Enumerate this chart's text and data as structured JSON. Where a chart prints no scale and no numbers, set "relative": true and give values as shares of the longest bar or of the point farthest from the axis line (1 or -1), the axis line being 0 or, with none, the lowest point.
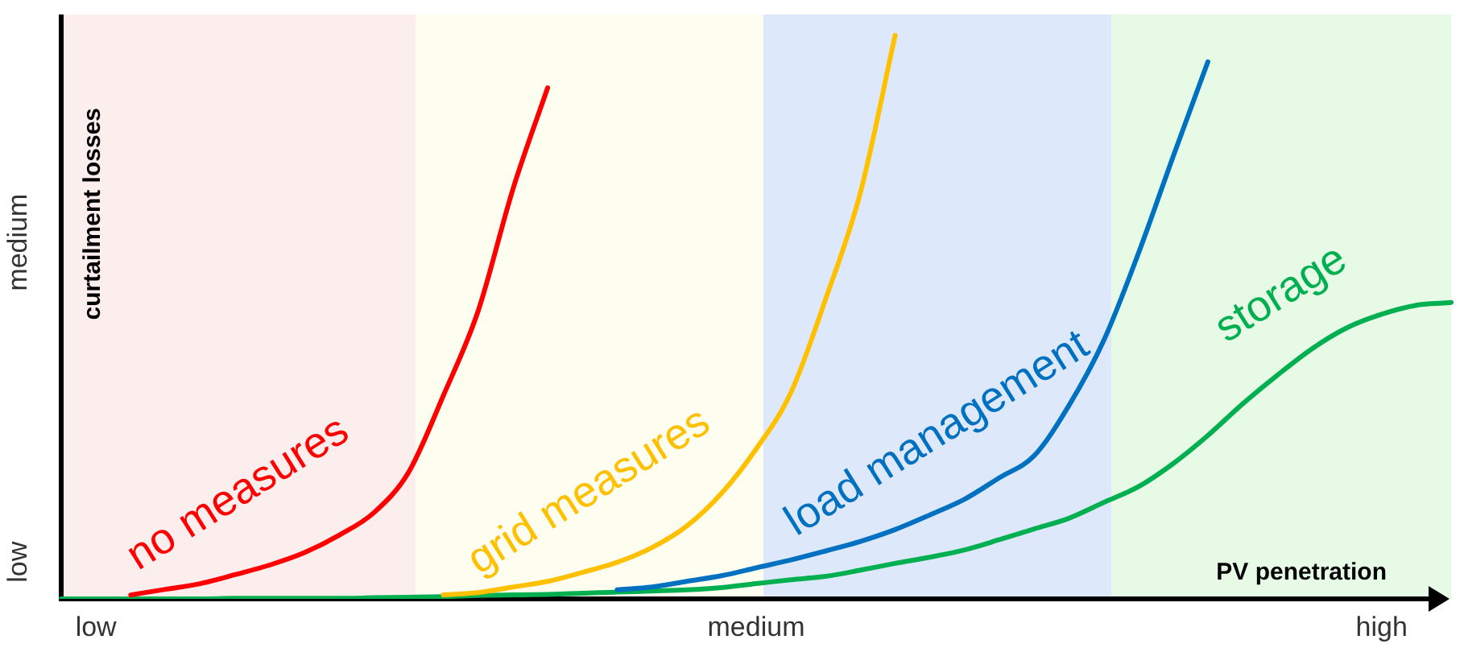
{
  "chart_data": {
    "type": "line",
    "xlabel": "PV penetration",
    "ylabel": "curtailment losses",
    "relative": true,
    "categories": [
      null,
      "low",
      null,
      null,
      null,
      null,
      null,
      null,
      null,
      null,
      null,
      null,
      null,
      null,
      null,
      null,
      null,
      null,
      null,
      null,
      "medium",
      null,
      null,
      null,
      null,
      null,
      null,
      null,
      null,
      null,
      null,
      null,
      null,
      null,
      null,
      null,
      null,
      null,
      "high",
      null,
      null
    ],
    "annotations": [
      "low",
      "medium"
    ],
    "grid": false,
    "legend": false,
    "marker": "none",
    "line_style": "solid",
    "series": [
      {
        "name": "no measures",
        "color": "#ff0000",
        "values": [
          null,
          null,
          0.007,
          0.017,
          0.027,
          0.043,
          0.06,
          0.082,
          0.113,
          0.153,
          0.225,
          0.361,
          0.511,
          0.727,
          0.907,
          null,
          null,
          null,
          null,
          null,
          null,
          null,
          null,
          null,
          null,
          null,
          null,
          null,
          null,
          null,
          null,
          null,
          null,
          null,
          null,
          null,
          null,
          null,
          null,
          null,
          null
        ]
      },
      {
        "name": "grid measures",
        "color": "#ffc000",
        "values": [
          null,
          null,
          null,
          null,
          null,
          null,
          null,
          null,
          null,
          null,
          null,
          0.007,
          0.011,
          0.021,
          0.031,
          0.047,
          0.065,
          0.091,
          0.129,
          0.187,
          0.266,
          0.366,
          0.532,
          0.721,
          1,
          null,
          null,
          null,
          null,
          null,
          null,
          null,
          null,
          null,
          null,
          null,
          null,
          null,
          null,
          null,
          null
        ]
      },
      {
        "name": "load management",
        "color": "#0070c0",
        "values": [
          null,
          null,
          null,
          null,
          null,
          null,
          null,
          null,
          null,
          null,
          null,
          null,
          null,
          null,
          null,
          null,
          0.016,
          0.021,
          0.031,
          0.041,
          0.055,
          0.069,
          0.085,
          0.102,
          0.123,
          0.149,
          0.177,
          0.215,
          0.254,
          0.343,
          0.458,
          0.613,
          0.785,
          0.953,
          null,
          null,
          null,
          null,
          null,
          null,
          null
        ]
      },
      {
        "name": "storage",
        "color": "#00b050",
        "values": [
          0,
          0,
          0,
          0,
          0,
          0.001,
          0.001,
          0.001,
          0.001,
          0.002,
          0.003,
          0.004,
          0.006,
          0.007,
          0.008,
          0.01,
          0.012,
          0.014,
          0.016,
          0.02,
          0.027,
          0.034,
          0.04,
          0.051,
          0.063,
          0.074,
          0.087,
          0.105,
          0.124,
          0.143,
          0.171,
          0.199,
          0.24,
          0.29,
          0.346,
          0.397,
          0.444,
          0.481,
          0.505,
          0.521,
          0.526
        ]
      }
    ]
  }
}
